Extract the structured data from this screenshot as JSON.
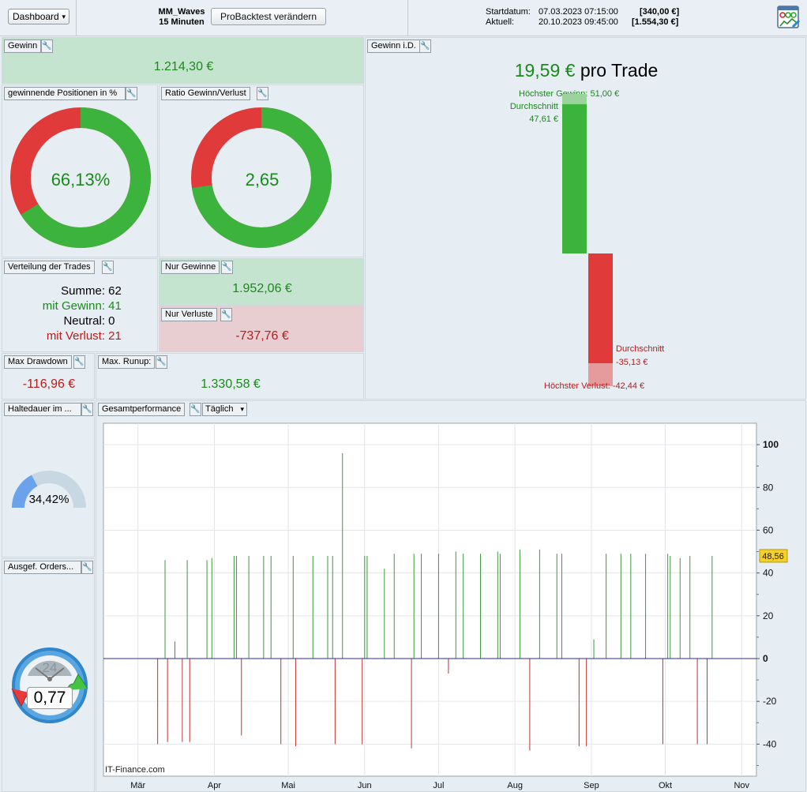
{
  "toolbar": {
    "dashboard_label": "Dashboard",
    "system_name": "MM_Waves",
    "timeframe": "15 Minuten",
    "modify_button": "ProBacktest verändern",
    "start_label": "Startdatum:",
    "start_date": "07.03.2023 07:15:00",
    "start_capital": "[340,00 €]",
    "current_label": "Aktuell:",
    "current_date": "20.10.2023 09:45:00",
    "current_capital": "[1.554,30 €]"
  },
  "gain": {
    "label": "Gewinn",
    "value": "1.214,30 €"
  },
  "win_pct": {
    "label": "gewinnende Positionen in %",
    "value": "66,13%",
    "fraction": 0.6613
  },
  "ratio": {
    "label": "Ratio Gewinn/Verlust",
    "value": "2,65",
    "fraction": 0.726
  },
  "distribution": {
    "label": "Verteilung der Trades",
    "sum_label": "Summe:",
    "sum": "62",
    "win_label": "mit Gewinn:",
    "win": "41",
    "neutral_label": "Neutral:",
    "neutral": "0",
    "loss_label": "mit Verlust:",
    "loss": "21"
  },
  "only_gains": {
    "label": "Nur Gewinne",
    "value": "1.952,06 €"
  },
  "only_losses": {
    "label": "Nur Verluste",
    "value": "-737,76 €"
  },
  "drawdown": {
    "label": "Max Drawdown",
    "value": "-116,96 €"
  },
  "runup": {
    "label": "Max. Runup:",
    "value": "1.330,58 €"
  },
  "avg_trade": {
    "label": "Gewinn i.D.",
    "value": "19,59 €",
    "suffix": "pro Trade",
    "max_gain_label": "Höchster Gewinn: 51,00 €",
    "avg_gain_title": "Durchschnitt",
    "avg_gain_value": "47,61 €",
    "avg_loss_title": "Durchschnitt",
    "avg_loss_value": "-35,13 €",
    "max_loss_label": "Höchster Verlust: -42,44 €",
    "max_gain": 51.0,
    "avg_gain": 47.61,
    "avg_loss": -35.13,
    "max_loss": -42.44
  },
  "holding": {
    "label": "Haltedauer im ...",
    "value": "34,42%",
    "fraction": 0.3442
  },
  "orders": {
    "label": "Ausgef. Orders...",
    "value": "0,77",
    "clock_number": "24"
  },
  "performance": {
    "label": "Gesamtperformance",
    "period": "Täglich",
    "watermark": "IT-Finance.com",
    "last_value_label": "48,56"
  },
  "colors": {
    "gain": "#3cb33c",
    "loss": "#e03a3a",
    "gain_bg": "#c5e4cf",
    "loss_bg": "#e8cdd1"
  },
  "chart_data": {
    "type": "bar",
    "ylim": [
      -55,
      110
    ],
    "yticks": [
      100,
      80,
      60,
      40,
      20,
      0,
      -20,
      -40
    ],
    "ytick_labels": [
      "100",
      "80",
      "60",
      "40",
      "20",
      "0",
      "-20",
      "-40"
    ],
    "months": [
      "Mär",
      "Apr",
      "Mai",
      "Jun",
      "Jul",
      "Aug",
      "Sep",
      "Okt",
      "Nov"
    ],
    "month_days": [
      1,
      32,
      62,
      93,
      123,
      154,
      185,
      215,
      246
    ],
    "x_unit": "day of year 2023",
    "x_range": [
      -13,
      252
    ],
    "bars": [
      {
        "day": 9,
        "value": -40
      },
      {
        "day": 12,
        "value": 46
      },
      {
        "day": 13,
        "value": -39
      },
      {
        "day": 16,
        "value": 8
      },
      {
        "day": 19,
        "value": -39
      },
      {
        "day": 21,
        "value": 46
      },
      {
        "day": 22,
        "value": -39
      },
      {
        "day": 29,
        "value": 46
      },
      {
        "day": 31,
        "value": 47
      },
      {
        "day": 40,
        "value": 48
      },
      {
        "day": 41,
        "value": 48
      },
      {
        "day": 43,
        "value": -36
      },
      {
        "day": 46,
        "value": 48
      },
      {
        "day": 52,
        "value": 48
      },
      {
        "day": 55,
        "value": 48
      },
      {
        "day": 59,
        "value": -40
      },
      {
        "day": 64,
        "value": 48
      },
      {
        "day": 65,
        "value": -41
      },
      {
        "day": 72,
        "value": 48
      },
      {
        "day": 78,
        "value": 48
      },
      {
        "day": 80,
        "value": 48
      },
      {
        "day": 81,
        "value": -40
      },
      {
        "day": 84,
        "value": 96
      },
      {
        "day": 92,
        "value": -40
      },
      {
        "day": 93,
        "value": 48
      },
      {
        "day": 94,
        "value": 48
      },
      {
        "day": 101,
        "value": 42
      },
      {
        "day": 105,
        "value": 49
      },
      {
        "day": 112,
        "value": -42
      },
      {
        "day": 113,
        "value": 49
      },
      {
        "day": 116,
        "value": 49
      },
      {
        "day": 123,
        "value": 49
      },
      {
        "day": 127,
        "value": -7
      },
      {
        "day": 130,
        "value": 50
      },
      {
        "day": 133,
        "value": 49
      },
      {
        "day": 140,
        "value": 49
      },
      {
        "day": 147,
        "value": 50
      },
      {
        "day": 148,
        "value": 49
      },
      {
        "day": 156,
        "value": 51
      },
      {
        "day": 160,
        "value": -43
      },
      {
        "day": 164,
        "value": 51
      },
      {
        "day": 171,
        "value": 49
      },
      {
        "day": 173,
        "value": 49
      },
      {
        "day": 180,
        "value": -41
      },
      {
        "day": 183,
        "value": -41
      },
      {
        "day": 186,
        "value": 9
      },
      {
        "day": 191,
        "value": 49
      },
      {
        "day": 197,
        "value": 49
      },
      {
        "day": 201,
        "value": 49
      },
      {
        "day": 207,
        "value": 49
      },
      {
        "day": 214,
        "value": -40
      },
      {
        "day": 216,
        "value": 49
      },
      {
        "day": 217,
        "value": 48
      },
      {
        "day": 221,
        "value": 47
      },
      {
        "day": 225,
        "value": 48
      },
      {
        "day": 228,
        "value": -40
      },
      {
        "day": 232,
        "value": -40
      },
      {
        "day": 234,
        "value": 48
      }
    ]
  }
}
